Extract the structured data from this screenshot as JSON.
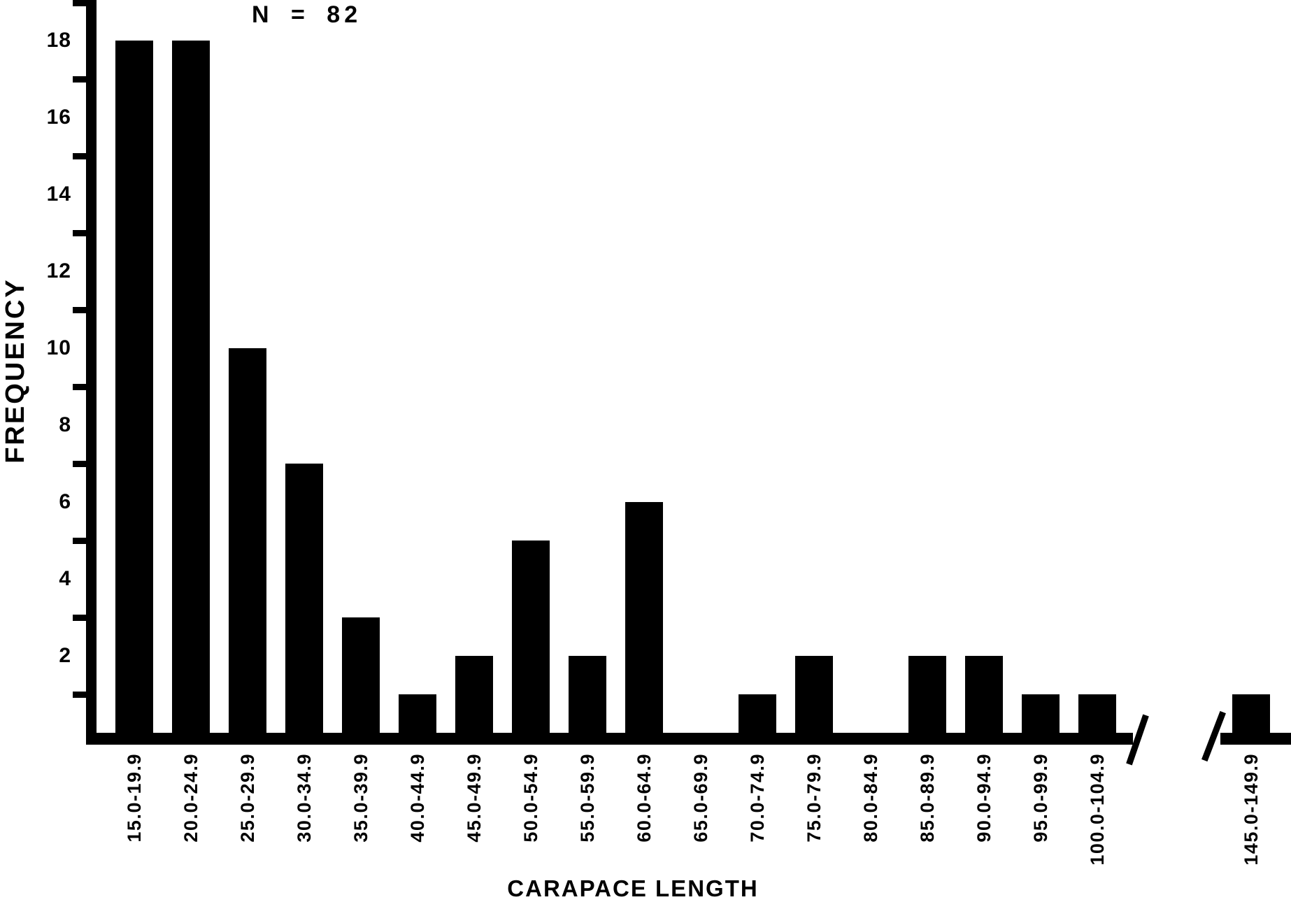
{
  "chart_data": {
    "type": "bar",
    "title": "",
    "annotation": "N = 82",
    "xlabel": "CARAPACE LENGTH",
    "ylabel": "FREQUENCY",
    "categories": [
      "15.0-19.9",
      "20.0-24.9",
      "25.0-29.9",
      "30.0-34.9",
      "35.0-39.9",
      "40.0-44.9",
      "45.0-49.9",
      "50.0-54.9",
      "55.0-59.9",
      "60.0-64.9",
      "65.0-69.9",
      "70.0-74.9",
      "75.0-79.9",
      "80.0-84.9",
      "85.0-89.9",
      "90.0-94.9",
      "95.0-99.9",
      "100.0-104.9",
      "145.0-149.9"
    ],
    "values": [
      18,
      18,
      10,
      7,
      3,
      1,
      2,
      5,
      2,
      6,
      0,
      1,
      2,
      0,
      2,
      2,
      1,
      1,
      1
    ],
    "total_n": 82,
    "ylim": [
      0,
      19
    ],
    "yticks_labeled": [
      2,
      4,
      6,
      8,
      10,
      12,
      14,
      16,
      18
    ],
    "yticks_minor": [
      1,
      3,
      5,
      7,
      9,
      11,
      13,
      15,
      17,
      19
    ],
    "axis_break": {
      "after_category_index": 17,
      "break_between": [
        "104.9",
        "145.0"
      ]
    },
    "bar_color": "#000000",
    "background_color": "#ffffff",
    "grid": false,
    "legend": null
  }
}
